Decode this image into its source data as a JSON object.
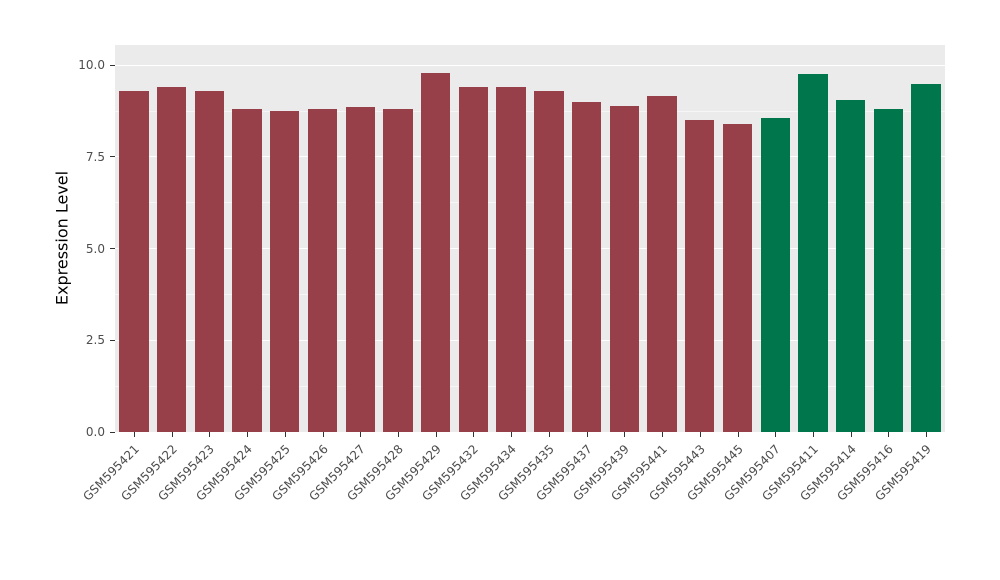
{
  "chart_data": {
    "type": "bar",
    "title": "",
    "xlabel": "",
    "ylabel": "Expression Level",
    "ylim": [
      0,
      10
    ],
    "y_scale_max": 10.55,
    "grid": true,
    "legend": "none",
    "y_ticks": [
      {
        "value": 0,
        "label": "0.0"
      },
      {
        "value": 2.5,
        "label": "2.5"
      },
      {
        "value": 5,
        "label": "5.0"
      },
      {
        "value": 7.5,
        "label": "7.5"
      },
      {
        "value": 10,
        "label": "10.0"
      }
    ],
    "y_minor_ticks": [
      1.25,
      3.75,
      6.25,
      8.75
    ],
    "bars": [
      {
        "label": "GSM595421",
        "value": 9.3,
        "color": "#97404A"
      },
      {
        "label": "GSM595422",
        "value": 9.4,
        "color": "#97404A"
      },
      {
        "label": "GSM595423",
        "value": 9.3,
        "color": "#97404A"
      },
      {
        "label": "GSM595424",
        "value": 8.8,
        "color": "#97404A"
      },
      {
        "label": "GSM595425",
        "value": 8.75,
        "color": "#97404A"
      },
      {
        "label": "GSM595426",
        "value": 8.8,
        "color": "#97404A"
      },
      {
        "label": "GSM595427",
        "value": 8.85,
        "color": "#97404A"
      },
      {
        "label": "GSM595428",
        "value": 8.8,
        "color": "#97404A"
      },
      {
        "label": "GSM595429",
        "value": 9.8,
        "color": "#97404A"
      },
      {
        "label": "GSM595432",
        "value": 9.4,
        "color": "#97404A"
      },
      {
        "label": "GSM595434",
        "value": 9.4,
        "color": "#97404A"
      },
      {
        "label": "GSM595435",
        "value": 9.3,
        "color": "#97404A"
      },
      {
        "label": "GSM595437",
        "value": 9.0,
        "color": "#97404A"
      },
      {
        "label": "GSM595439",
        "value": 8.9,
        "color": "#97404A"
      },
      {
        "label": "GSM595441",
        "value": 9.15,
        "color": "#97404A"
      },
      {
        "label": "GSM595443",
        "value": 8.5,
        "color": "#97404A"
      },
      {
        "label": "GSM595445",
        "value": 8.4,
        "color": "#97404A"
      },
      {
        "label": "GSM595407",
        "value": 8.55,
        "color": "#00764C"
      },
      {
        "label": "GSM595411",
        "value": 9.75,
        "color": "#00764C"
      },
      {
        "label": "GSM595414",
        "value": 9.05,
        "color": "#00764C"
      },
      {
        "label": "GSM595416",
        "value": 8.8,
        "color": "#00764C"
      },
      {
        "label": "GSM595419",
        "value": 9.5,
        "color": "#00764C"
      }
    ],
    "colors": {
      "panel_background": "#EBEBEB",
      "grid_major": "#FFFFFF",
      "group_red": "#97404A",
      "group_green": "#00764C"
    },
    "bar_width_fraction": 0.78
  }
}
